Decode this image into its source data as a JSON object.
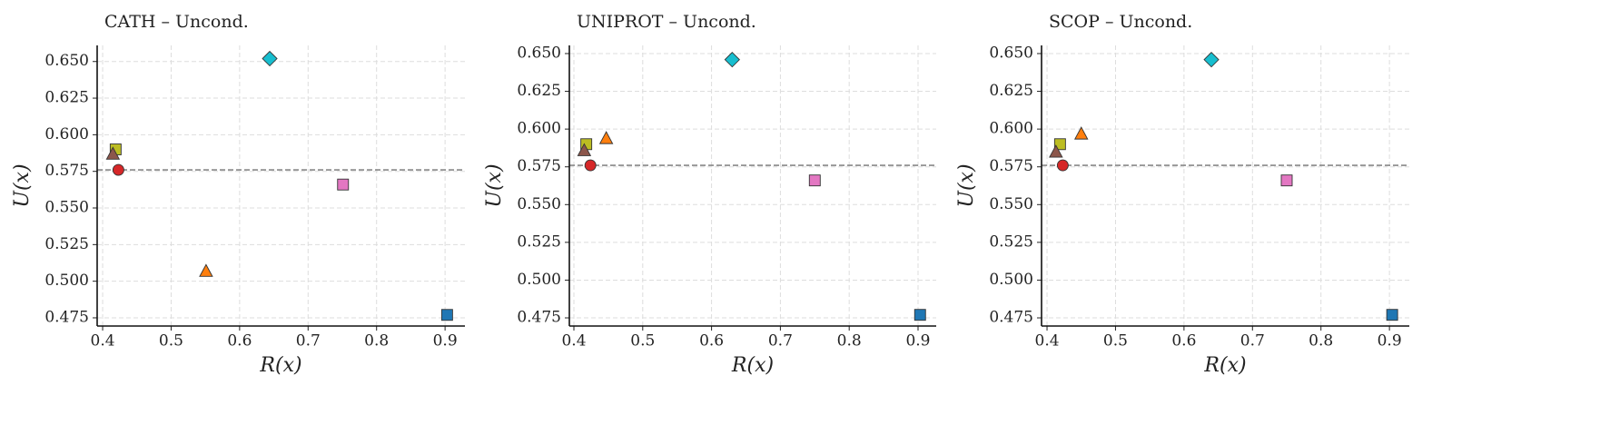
{
  "chart_data": [
    {
      "type": "scatter",
      "title": "CATH – Uncond.",
      "xlabel": "R(x)",
      "ylabel": "U(x)",
      "xlim": [
        0.392,
        0.929
      ],
      "ylim": [
        0.4694,
        0.661
      ],
      "xticks": [
        0.4,
        0.5,
        0.6,
        0.7,
        0.8,
        0.9
      ],
      "yticks": [
        {
          "value": 0.475,
          "label": "0.475"
        },
        {
          "value": 0.5,
          "label": "0.500"
        },
        {
          "value": 0.525,
          "label": "0.525"
        },
        {
          "value": 0.55,
          "label": "0.550"
        },
        {
          "value": 0.575,
          "label": "0.575"
        },
        {
          "value": 0.6,
          "label": "0.600"
        },
        {
          "value": 0.625,
          "label": "0.625"
        },
        {
          "value": 0.65,
          "label": "0.650"
        }
      ],
      "grid": true,
      "hline": 0.576,
      "series": [
        {
          "color": "#17becf",
          "marker": "diamond",
          "x": [
            0.644
          ],
          "values": [
            0.652
          ]
        },
        {
          "color": "#bcbd22",
          "marker": "square",
          "x": [
            0.419
          ],
          "values": [
            0.59
          ]
        },
        {
          "color": "#8c564b",
          "marker": "triangle",
          "x": [
            0.415
          ],
          "values": [
            0.587
          ]
        },
        {
          "color": "#d62728",
          "marker": "circle",
          "x": [
            0.423
          ],
          "values": [
            0.576
          ]
        },
        {
          "color": "#e377c2",
          "marker": "square",
          "x": [
            0.751
          ],
          "values": [
            0.566
          ]
        },
        {
          "color": "#ff7f0e",
          "marker": "triangle",
          "x": [
            0.551
          ],
          "values": [
            0.507
          ]
        },
        {
          "color": "#1f77b4",
          "marker": "square",
          "x": [
            0.903
          ],
          "values": [
            0.477
          ]
        }
      ]
    },
    {
      "type": "scatter",
      "title": "UNIPROT – Uncond.",
      "xlabel": "R(x)",
      "ylabel": "U(x)",
      "xlim": [
        0.3934,
        0.9264
      ],
      "ylim": [
        0.4696,
        0.6554
      ],
      "xticks": [
        0.4,
        0.5,
        0.6,
        0.7,
        0.8,
        0.9
      ],
      "yticks": [
        {
          "value": 0.475,
          "label": "0.475"
        },
        {
          "value": 0.5,
          "label": "0.500"
        },
        {
          "value": 0.525,
          "label": "0.525"
        },
        {
          "value": 0.55,
          "label": "0.550"
        },
        {
          "value": 0.575,
          "label": "0.575"
        },
        {
          "value": 0.6,
          "label": "0.600"
        },
        {
          "value": 0.625,
          "label": "0.625"
        },
        {
          "value": 0.65,
          "label": "0.650"
        }
      ],
      "grid": true,
      "hline": 0.576,
      "series": [
        {
          "color": "#17becf",
          "marker": "diamond",
          "x": [
            0.63
          ],
          "values": [
            0.646
          ]
        },
        {
          "color": "#bcbd22",
          "marker": "square",
          "x": [
            0.418
          ],
          "values": [
            0.59
          ]
        },
        {
          "color": "#8c564b",
          "marker": "triangle",
          "x": [
            0.415
          ],
          "values": [
            0.586
          ]
        },
        {
          "color": "#ff7f0e",
          "marker": "triangle",
          "x": [
            0.447
          ],
          "values": [
            0.594
          ]
        },
        {
          "color": "#d62728",
          "marker": "circle",
          "x": [
            0.424
          ],
          "values": [
            0.576
          ]
        },
        {
          "color": "#e377c2",
          "marker": "square",
          "x": [
            0.75
          ],
          "values": [
            0.566
          ]
        },
        {
          "color": "#1f77b4",
          "marker": "square",
          "x": [
            0.903
          ],
          "values": [
            0.477
          ]
        }
      ]
    },
    {
      "type": "scatter",
      "title": "SCOP – Uncond.",
      "xlabel": "R(x)",
      "ylabel": "U(x)",
      "xlim": [
        0.392,
        0.929
      ],
      "ylim": [
        0.4696,
        0.6554
      ],
      "xticks": [
        0.4,
        0.5,
        0.6,
        0.7,
        0.8,
        0.9
      ],
      "yticks": [
        {
          "value": 0.475,
          "label": "0.475"
        },
        {
          "value": 0.5,
          "label": "0.500"
        },
        {
          "value": 0.525,
          "label": "0.525"
        },
        {
          "value": 0.55,
          "label": "0.550"
        },
        {
          "value": 0.575,
          "label": "0.575"
        },
        {
          "value": 0.6,
          "label": "0.600"
        },
        {
          "value": 0.625,
          "label": "0.625"
        },
        {
          "value": 0.65,
          "label": "0.650"
        }
      ],
      "grid": true,
      "hline": 0.576,
      "series": [
        {
          "color": "#17becf",
          "marker": "diamond",
          "x": [
            0.64
          ],
          "values": [
            0.646
          ]
        },
        {
          "color": "#bcbd22",
          "marker": "square",
          "x": [
            0.419
          ],
          "values": [
            0.59
          ]
        },
        {
          "color": "#8c564b",
          "marker": "triangle",
          "x": [
            0.413
          ],
          "values": [
            0.585
          ]
        },
        {
          "color": "#ff7f0e",
          "marker": "triangle",
          "x": [
            0.45
          ],
          "values": [
            0.597
          ]
        },
        {
          "color": "#d62728",
          "marker": "circle",
          "x": [
            0.423
          ],
          "values": [
            0.576
          ]
        },
        {
          "color": "#e377c2",
          "marker": "square",
          "x": [
            0.75
          ],
          "values": [
            0.566
          ]
        },
        {
          "color": "#1f77b4",
          "marker": "square",
          "x": [
            0.904
          ],
          "values": [
            0.477
          ]
        }
      ]
    }
  ]
}
